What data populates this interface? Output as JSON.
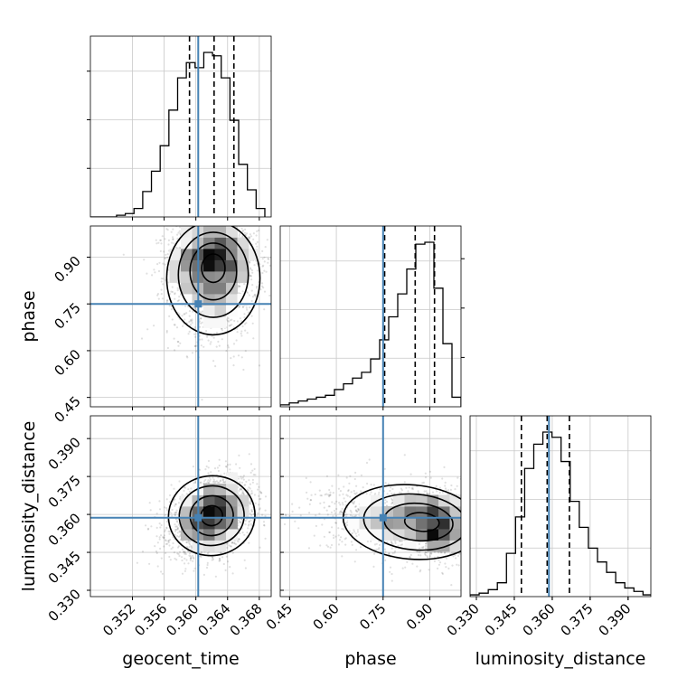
{
  "chart_data": {
    "type": "corner",
    "parameters": [
      {
        "name": "geocent_time",
        "truth": 0.3603,
        "range": [
          0.3467,
          0.3695
        ],
        "ticks": [
          0.352,
          0.356,
          0.36,
          0.364,
          0.368
        ],
        "tick_labels": [
          "0.352",
          "0.356",
          "0.360",
          "0.364",
          "0.368"
        ],
        "quantiles": [
          0.3592,
          0.3623,
          0.3648
        ]
      },
      {
        "name": "phase",
        "truth": 0.75,
        "range": [
          0.42,
          1.0
        ],
        "ticks": [
          0.45,
          0.6,
          0.75,
          0.9
        ],
        "tick_labels": [
          "0.45",
          "0.60",
          "0.75",
          "0.90"
        ],
        "quantiles": [
          0.755,
          0.853,
          0.915
        ]
      },
      {
        "name": "luminosity_distance",
        "truth": 0.3587,
        "range": [
          0.3275,
          0.399
        ],
        "ticks": [
          0.33,
          0.345,
          0.36,
          0.375,
          0.39
        ],
        "tick_labels": [
          "0.330",
          "0.345",
          "0.360",
          "0.375",
          "0.390"
        ],
        "quantiles": [
          0.3478,
          0.358,
          0.3668
        ]
      }
    ],
    "histograms": [
      {
        "param": "geocent_time",
        "bin_edges": [
          0.3467,
          0.3478,
          0.3489,
          0.35,
          0.3511,
          0.3522,
          0.3533,
          0.3544,
          0.3555,
          0.3566,
          0.3577,
          0.3588,
          0.3599,
          0.361,
          0.3621,
          0.3632,
          0.3643,
          0.3654,
          0.3665,
          0.3676,
          0.3687
        ],
        "counts": [
          0,
          0,
          0,
          0.01,
          0.02,
          0.05,
          0.15,
          0.27,
          0.42,
          0.63,
          0.82,
          0.91,
          0.88,
          0.97,
          0.95,
          0.82,
          0.57,
          0.31,
          0.16,
          0.05
        ]
      },
      {
        "param": "phase",
        "bin_edges": [
          0.42,
          0.449,
          0.478,
          0.507,
          0.536,
          0.565,
          0.594,
          0.623,
          0.652,
          0.681,
          0.71,
          0.739,
          0.768,
          0.797,
          0.826,
          0.855,
          0.884,
          0.913,
          0.942,
          0.971,
          1.0
        ],
        "counts": [
          0.01,
          0.02,
          0.03,
          0.04,
          0.05,
          0.06,
          0.09,
          0.12,
          0.15,
          0.18,
          0.25,
          0.35,
          0.47,
          0.59,
          0.72,
          0.85,
          0.86,
          0.62,
          0.33,
          0.05
        ]
      },
      {
        "param": "luminosity_distance",
        "bin_edges": [
          0.3275,
          0.3311,
          0.3347,
          0.3383,
          0.3419,
          0.3455,
          0.3491,
          0.3527,
          0.3563,
          0.3599,
          0.3635,
          0.3671,
          0.3707,
          0.3743,
          0.3779,
          0.3815,
          0.3851,
          0.3887,
          0.3923,
          0.3959,
          0.3995
        ],
        "counts": [
          0.01,
          0.02,
          0.04,
          0.08,
          0.25,
          0.46,
          0.74,
          0.88,
          0.95,
          0.92,
          0.78,
          0.55,
          0.4,
          0.28,
          0.2,
          0.14,
          0.08,
          0.05,
          0.03,
          0.01
        ]
      }
    ],
    "joint": [
      {
        "x": "geocent_time",
        "y": "phase",
        "center": [
          0.3622,
          0.875
        ],
        "sigma": [
          0.0028,
          0.07
        ],
        "rho": 0,
        "tail_y": -0.2
      },
      {
        "x": "geocent_time",
        "y": "luminosity_distance",
        "center": [
          0.362,
          0.3595
        ],
        "sigma": [
          0.0026,
          0.0075
        ],
        "rho": 0.3,
        "tail_y": 0
      },
      {
        "x": "phase",
        "y": "luminosity_distance",
        "center": [
          0.885,
          0.357
        ],
        "sigma": [
          0.085,
          0.007
        ],
        "rho": -0.2,
        "tail_x": -0.25
      }
    ],
    "quantile_style": "dashed",
    "truth_color": "#4682b4",
    "grid": true
  }
}
